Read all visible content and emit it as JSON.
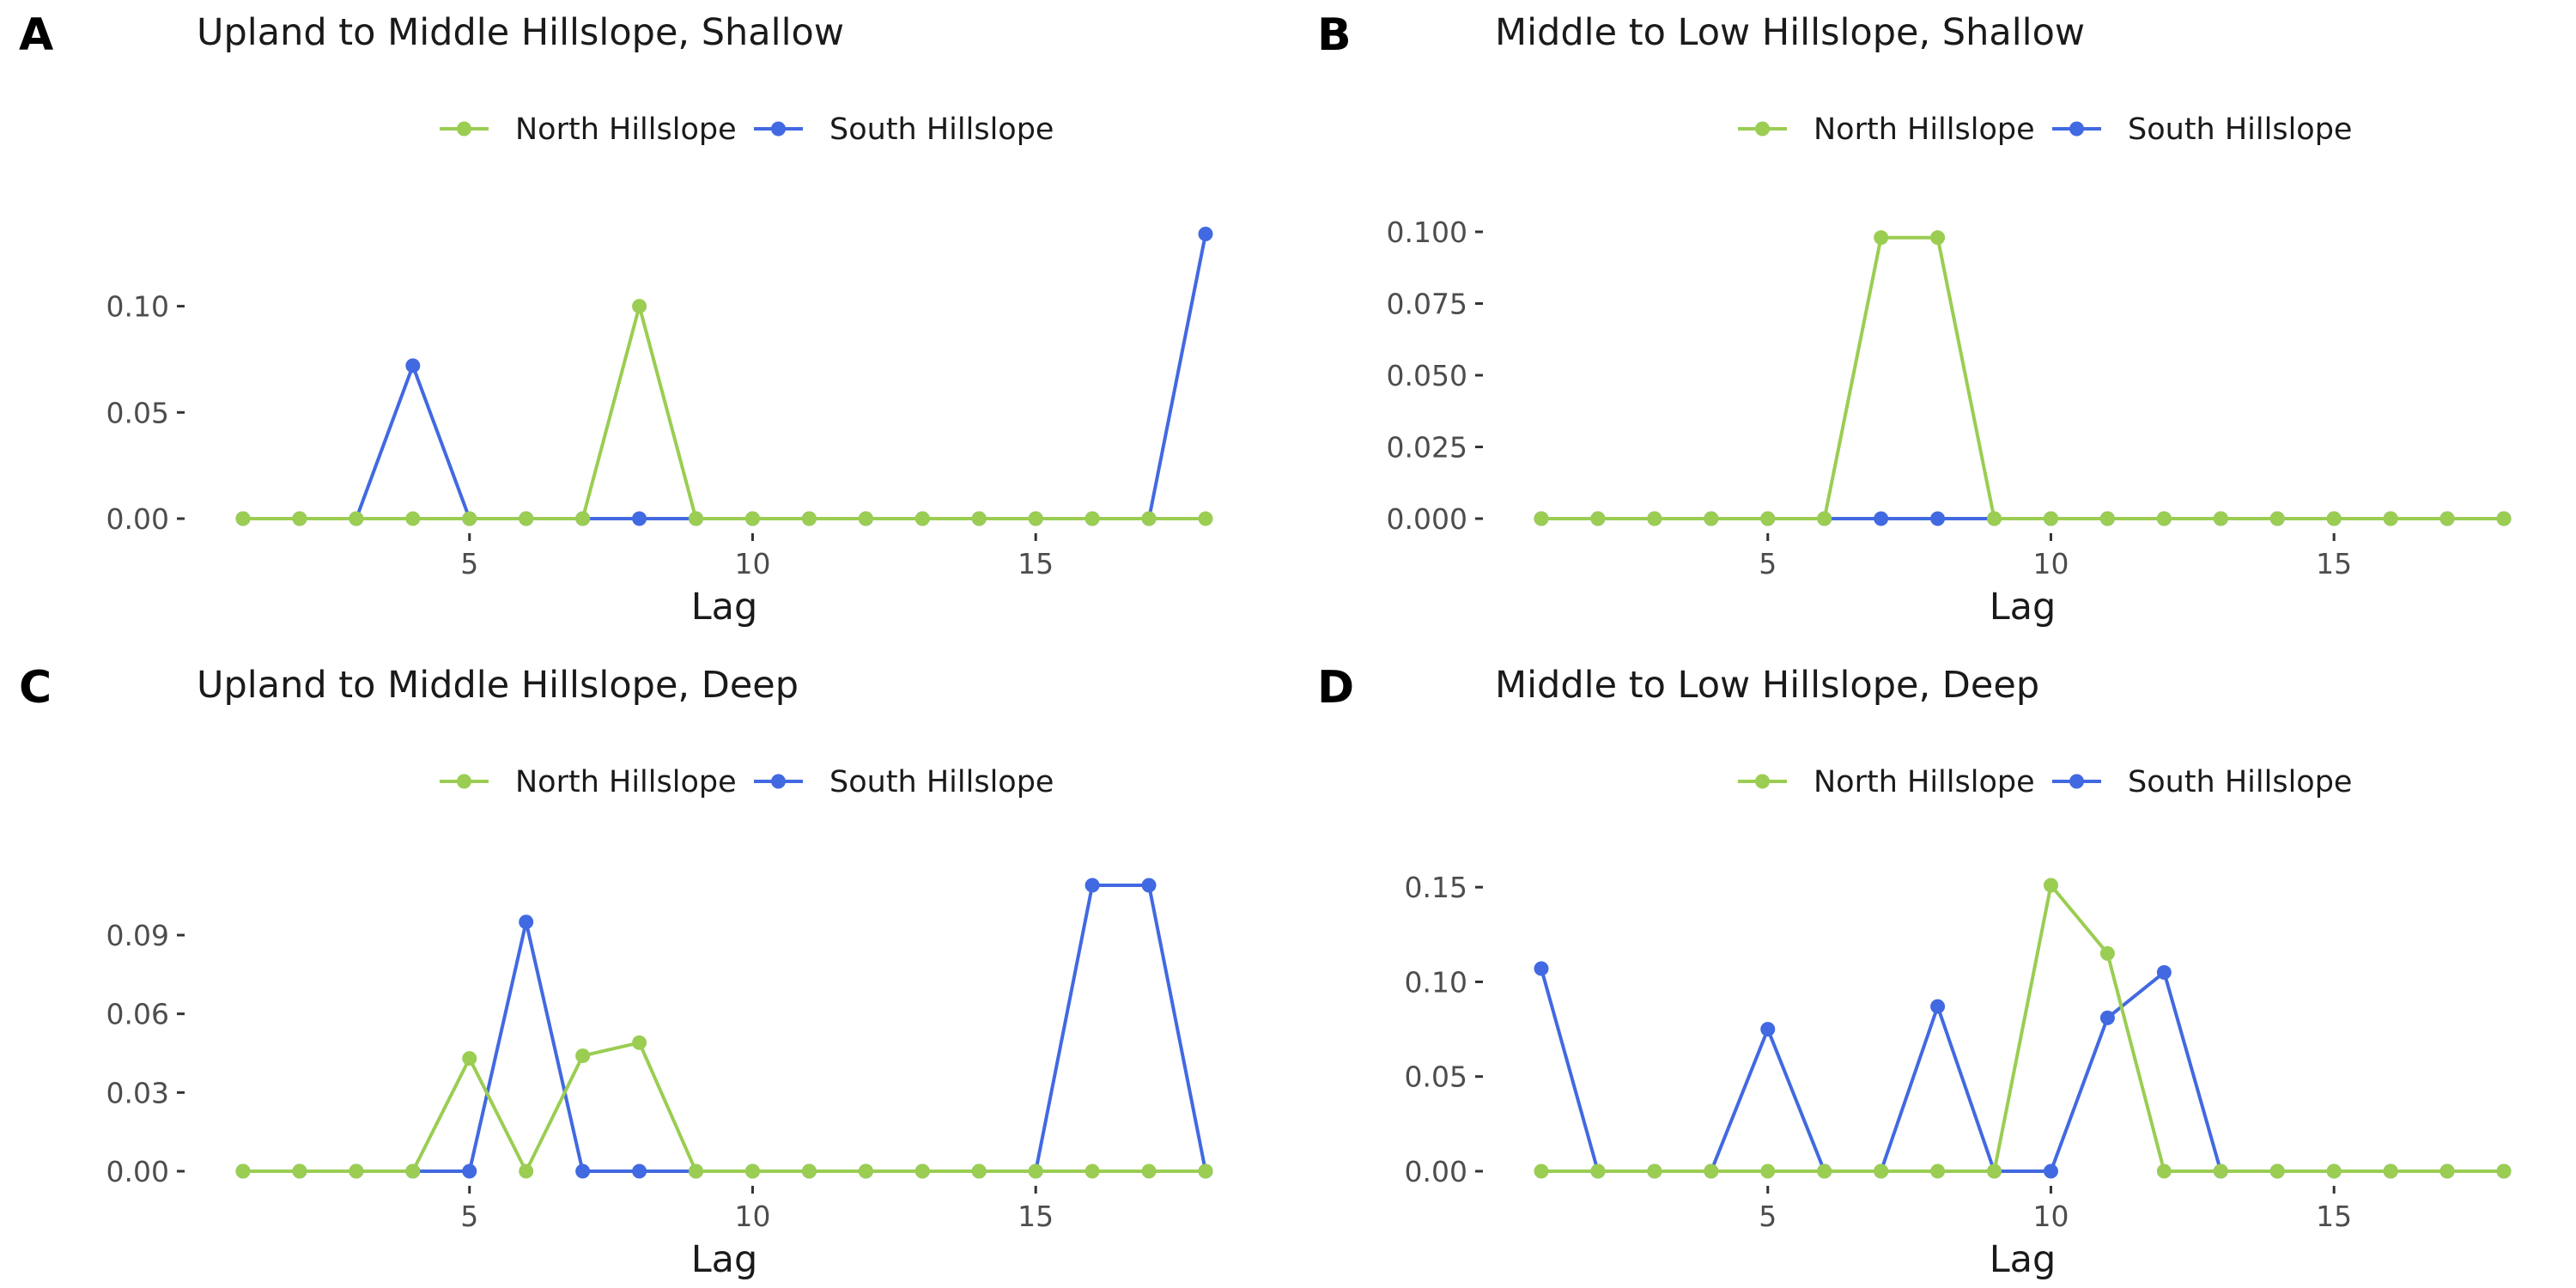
{
  "colors": {
    "north": "#9acd52",
    "south": "#4169e1",
    "text": "#4d4d4d",
    "title": "#1a1a1a",
    "axis_title": "#1a1a1a",
    "panel_label": "#000000",
    "tick": "#333333"
  },
  "chart_data": [
    {
      "panel_label": "A",
      "type": "line",
      "title": "Upland to Middle Hillslope, Shallow",
      "xlabel": "Lag",
      "ylabel": "",
      "x": [
        1,
        2,
        3,
        4,
        5,
        6,
        7,
        8,
        9,
        10,
        11,
        12,
        13,
        14,
        15,
        16,
        17,
        18
      ],
      "xlim": [
        1,
        18
      ],
      "ylim": [
        0,
        0.135
      ],
      "xticks": [
        5,
        10,
        15
      ],
      "xtick_labels": [
        "5",
        "10",
        "15"
      ],
      "yticks": [
        0,
        0.05,
        0.1
      ],
      "ytick_labels": [
        "0.00",
        "0.05",
        "0.10"
      ],
      "legend_position": "top",
      "grid": false,
      "series": [
        {
          "name": "South Hillslope",
          "color": "#4169e1",
          "values": [
            0,
            0,
            0,
            0.072,
            0,
            0,
            0,
            0,
            0,
            0,
            0,
            0,
            0,
            0,
            0,
            0,
            0,
            0.134
          ]
        },
        {
          "name": "North Hillslope",
          "color": "#9acd52",
          "values": [
            0,
            0,
            0,
            0,
            0,
            0,
            0,
            0.1,
            0,
            0,
            0,
            0,
            0,
            0,
            0,
            0,
            0,
            0
          ]
        }
      ]
    },
    {
      "panel_label": "B",
      "type": "line",
      "title": "Middle to Low Hillslope, Shallow",
      "xlabel": "Lag",
      "ylabel": "",
      "x": [
        1,
        2,
        3,
        4,
        5,
        6,
        7,
        8,
        9,
        10,
        11,
        12,
        13,
        14,
        15,
        16,
        17,
        18
      ],
      "xlim": [
        1,
        18
      ],
      "ylim": [
        0,
        0.1
      ],
      "xticks": [
        5,
        10,
        15
      ],
      "xtick_labels": [
        "5",
        "10",
        "15"
      ],
      "yticks": [
        0,
        0.025,
        0.05,
        0.075,
        0.1
      ],
      "ytick_labels": [
        "0.000",
        "0.025",
        "0.050",
        "0.075",
        "0.100"
      ],
      "legend_position": "top",
      "grid": false,
      "series": [
        {
          "name": "South Hillslope",
          "color": "#4169e1",
          "values": [
            0,
            0,
            0,
            0,
            0,
            0,
            0,
            0,
            0,
            0,
            0,
            0,
            0,
            0,
            0,
            0,
            0,
            0
          ]
        },
        {
          "name": "North Hillslope",
          "color": "#9acd52",
          "values": [
            0,
            0,
            0,
            0,
            0,
            0,
            0.098,
            0.098,
            0,
            0,
            0,
            0,
            0,
            0,
            0,
            0,
            0,
            0
          ]
        }
      ]
    },
    {
      "panel_label": "C",
      "type": "line",
      "title": "Upland to Middle Hillslope, Deep",
      "xlabel": "Lag",
      "ylabel": "",
      "x": [
        1,
        2,
        3,
        4,
        5,
        6,
        7,
        8,
        9,
        10,
        11,
        12,
        13,
        14,
        15,
        16,
        17,
        18
      ],
      "xlim": [
        1,
        18
      ],
      "ylim": [
        0,
        0.109
      ],
      "xticks": [
        5,
        10,
        15
      ],
      "xtick_labels": [
        "5",
        "10",
        "15"
      ],
      "yticks": [
        0,
        0.03,
        0.06,
        0.09
      ],
      "ytick_labels": [
        "0.00",
        "0.03",
        "0.06",
        "0.09"
      ],
      "legend_position": "top",
      "grid": false,
      "series": [
        {
          "name": "South Hillslope",
          "color": "#4169e1",
          "values": [
            0,
            0,
            0,
            0,
            0,
            0.095,
            0,
            0,
            0,
            0,
            0,
            0,
            0,
            0,
            0,
            0.109,
            0.109,
            0
          ]
        },
        {
          "name": "North Hillslope",
          "color": "#9acd52",
          "values": [
            0,
            0,
            0,
            0,
            0.043,
            0,
            0.044,
            0.049,
            0,
            0,
            0,
            0,
            0,
            0,
            0,
            0,
            0,
            0
          ]
        }
      ]
    },
    {
      "panel_label": "D",
      "type": "line",
      "title": "Middle to Low Hillslope, Deep",
      "xlabel": "Lag",
      "ylabel": "",
      "x": [
        1,
        2,
        3,
        4,
        5,
        6,
        7,
        8,
        9,
        10,
        11,
        12,
        13,
        14,
        15,
        16,
        17,
        18
      ],
      "xlim": [
        1,
        18
      ],
      "ylim": [
        0,
        0.151
      ],
      "xticks": [
        5,
        10,
        15
      ],
      "xtick_labels": [
        "5",
        "10",
        "15"
      ],
      "yticks": [
        0,
        0.05,
        0.1,
        0.15
      ],
      "ytick_labels": [
        "0.00",
        "0.05",
        "0.10",
        "0.15"
      ],
      "legend_position": "top",
      "grid": false,
      "series": [
        {
          "name": "South Hillslope",
          "color": "#4169e1",
          "values": [
            0.107,
            0,
            0,
            0,
            0.075,
            0,
            0,
            0.087,
            0,
            0,
            0.081,
            0.105,
            0,
            0,
            0,
            0,
            0,
            0
          ]
        },
        {
          "name": "North Hillslope",
          "color": "#9acd52",
          "values": [
            0,
            0,
            0,
            0,
            0,
            0,
            0,
            0,
            0,
            0.151,
            0.115,
            0,
            0,
            0,
            0,
            0,
            0,
            0
          ]
        }
      ]
    }
  ]
}
